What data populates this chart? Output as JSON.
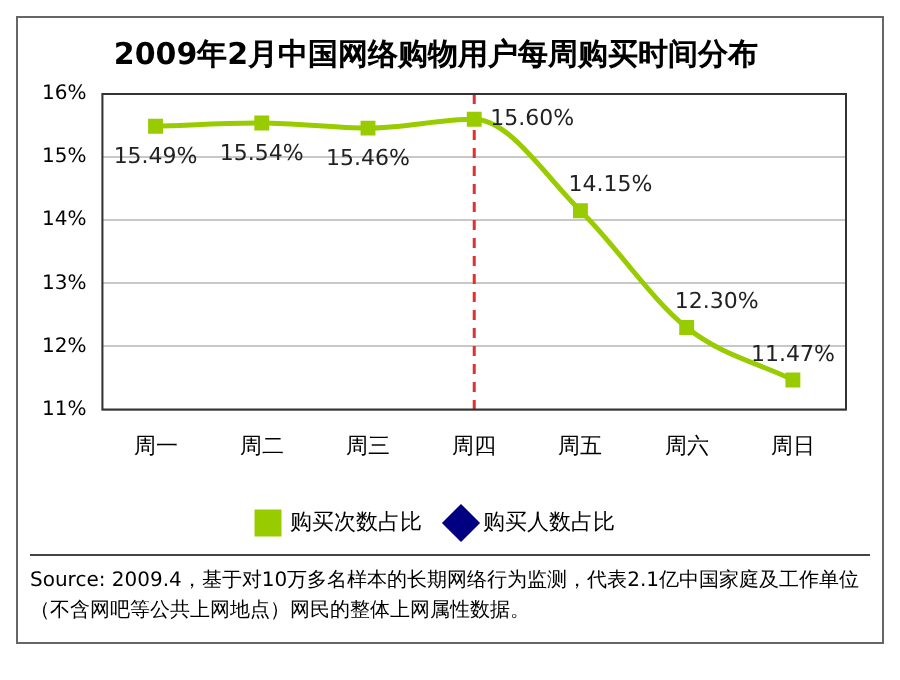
{
  "chart_data": {
    "type": "line",
    "title": "2009年2月中国网络购物用户每周购买时间分布",
    "categories": [
      "周一",
      "周二",
      "周三",
      "周四",
      "周五",
      "周六",
      "周日"
    ],
    "series": [
      {
        "name": "购买次数占比",
        "color": "#99cc00",
        "values": [
          15.49,
          15.54,
          15.46,
          15.6,
          14.15,
          12.3,
          11.47
        ],
        "value_labels": [
          "15.49%",
          "15.54%",
          "15.46%",
          "15.60%",
          "14.15%",
          "12.30%",
          "11.47%"
        ],
        "marker": "square"
      },
      {
        "name": "购买人数占比",
        "color": "#000080",
        "values": [
          null,
          null,
          null,
          null,
          null,
          null,
          null
        ],
        "marker": "diamond"
      }
    ],
    "ylim": [
      11,
      16
    ],
    "yticks": [
      {
        "value": 11,
        "label": "11%"
      },
      {
        "value": 12,
        "label": "12%"
      },
      {
        "value": 13,
        "label": "13%"
      },
      {
        "value": 14,
        "label": "14%"
      },
      {
        "value": 15,
        "label": "15%"
      },
      {
        "value": 16,
        "label": "16%"
      }
    ],
    "grid": "y",
    "legend": "bottom",
    "ref_lines": [
      {
        "axis": "x",
        "value": "周四",
        "color": "#e03030",
        "line_style": "dashed"
      }
    ],
    "annotations": [
      "Source: 2009.4，基于对10万多名样本的长期网络行为监测，代表2.1亿中国家庭及工作单位（不含网吧等公共上网地点）网民的整体上网属性数据。"
    ]
  }
}
